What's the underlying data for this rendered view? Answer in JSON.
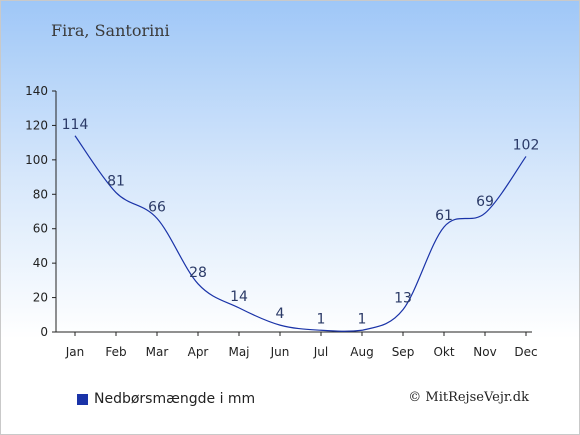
{
  "header": {
    "location": "Fira, Santorini"
  },
  "legend": {
    "label": "Nedbørsmængde i mm",
    "color": "#1a33a8"
  },
  "footer": {
    "copyright": "© MitRejseVejr.dk"
  },
  "chart_data": {
    "type": "line",
    "categories": [
      "Jan",
      "Feb",
      "Mar",
      "Apr",
      "Maj",
      "Jun",
      "Jul",
      "Aug",
      "Sep",
      "Okt",
      "Nov",
      "Dec"
    ],
    "series": [
      {
        "name": "Nedbørsmængde i mm",
        "values": [
          114,
          81,
          66,
          28,
          14,
          4,
          1,
          1,
          13,
          61,
          69,
          102
        ],
        "color": "#1a33a8"
      }
    ],
    "y_ticks": [
      0,
      20,
      40,
      60,
      80,
      100,
      120,
      140
    ],
    "ylim": [
      0,
      140
    ],
    "grid": false,
    "legend_position": "bottom-left"
  }
}
